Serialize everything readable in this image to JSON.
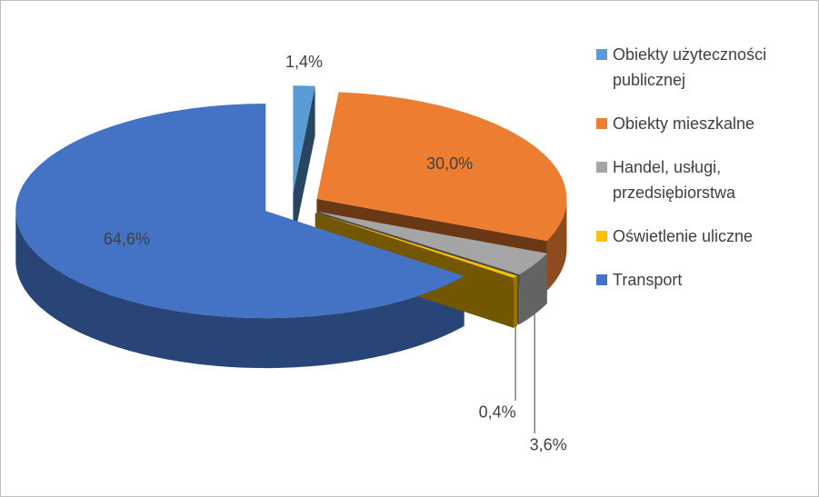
{
  "chart_data": {
    "type": "pie",
    "categories": [
      "Obiekty użyteczności publicznej",
      "Obiekty mieszkalne",
      "Handel, usługi, przedsiębiorstwa",
      "Oświetlenie uliczne",
      "Transport"
    ],
    "values": [
      1.4,
      30.0,
      3.6,
      0.4,
      64.6
    ],
    "value_labels": [
      "1,4%",
      "30,0%",
      "3,6%",
      "0,4%",
      "64,6%"
    ],
    "colors": [
      "#5b9bd5",
      "#ed7d31",
      "#a5a5a5",
      "#ffc000",
      "#4472c4"
    ],
    "legend": "right"
  }
}
